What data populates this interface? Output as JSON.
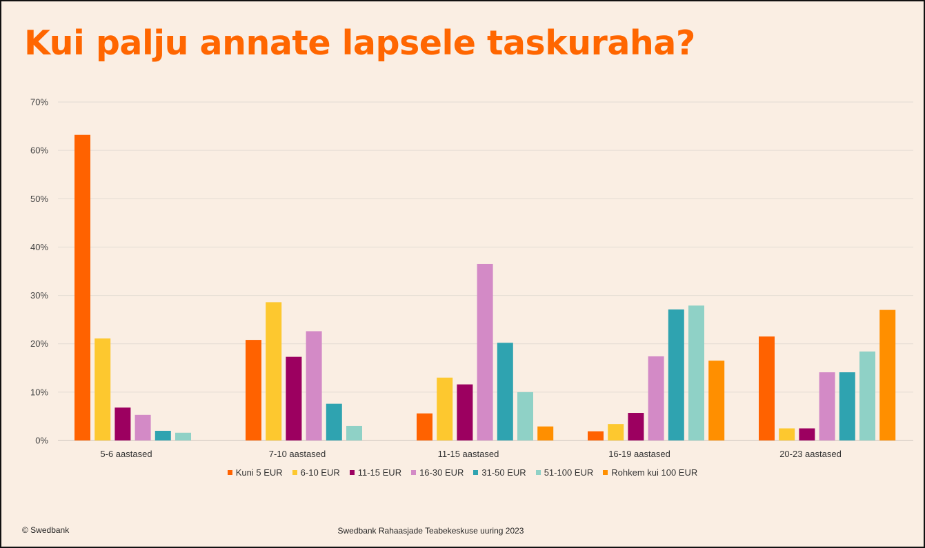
{
  "title": "Kui palju annate lapsele taskuraha?",
  "footer": {
    "copyright": "© Swedbank",
    "source": "Swedbank Rahaasjade Teabekeskuse uuring 2023"
  },
  "chart_data": {
    "type": "bar",
    "categories": [
      "5-6 aastased",
      "7-10 aastased",
      "11-15 aastased",
      "16-19 aastased",
      "20-23 aastased"
    ],
    "series": [
      {
        "name": "Kuni 5 EUR",
        "color": "#ff6200",
        "values": [
          63.2,
          20.8,
          5.6,
          1.9,
          21.5
        ]
      },
      {
        "name": "6-10 EUR",
        "color": "#fdc82f",
        "values": [
          21.1,
          28.6,
          13.0,
          3.4,
          2.5
        ]
      },
      {
        "name": "11-15 EUR",
        "color": "#9c0060",
        "values": [
          6.8,
          17.3,
          11.6,
          5.7,
          2.5
        ]
      },
      {
        "name": "16-30 EUR",
        "color": "#d38ac6",
        "values": [
          5.3,
          22.6,
          36.5,
          17.4,
          14.1
        ]
      },
      {
        "name": "31-50 EUR",
        "color": "#2fa3b0",
        "values": [
          2.0,
          7.6,
          20.2,
          27.1,
          14.1
        ]
      },
      {
        "name": "51-100 EUR",
        "color": "#8fd1c6",
        "values": [
          1.6,
          3.0,
          10.0,
          27.9,
          18.4
        ]
      },
      {
        "name": "Rohkem kui 100 EUR",
        "color": "#ff8f00",
        "values": [
          null,
          null,
          2.9,
          16.5,
          27.0
        ]
      }
    ],
    "y_ticks": [
      "0%",
      "10%",
      "20%",
      "30%",
      "40%",
      "50%",
      "60%",
      "70%"
    ],
    "ylim": [
      0,
      70
    ],
    "grid": true,
    "legend": "bottom"
  }
}
